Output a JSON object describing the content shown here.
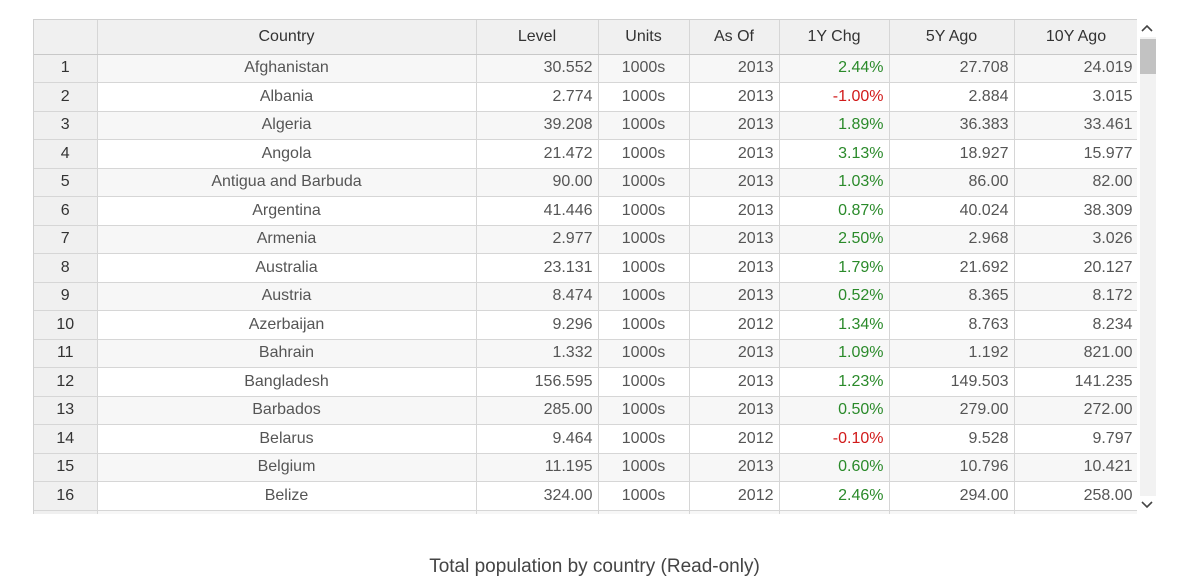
{
  "grid": {
    "headers": [
      "",
      "Country",
      "Level",
      "Units",
      "As Of",
      "1Y Chg",
      "5Y Ago",
      "10Y Ago"
    ],
    "rows": [
      {
        "n": "1",
        "country": "Afghanistan",
        "level": "30.552",
        "units": "1000s",
        "asof": "2013",
        "chg": "2.44%",
        "y5": "27.708",
        "y10": "24.019",
        "dir": "pos"
      },
      {
        "n": "2",
        "country": "Albania",
        "level": "2.774",
        "units": "1000s",
        "asof": "2013",
        "chg": "-1.00%",
        "y5": "2.884",
        "y10": "3.015",
        "dir": "neg"
      },
      {
        "n": "3",
        "country": "Algeria",
        "level": "39.208",
        "units": "1000s",
        "asof": "2013",
        "chg": "1.89%",
        "y5": "36.383",
        "y10": "33.461",
        "dir": "pos"
      },
      {
        "n": "4",
        "country": "Angola",
        "level": "21.472",
        "units": "1000s",
        "asof": "2013",
        "chg": "3.13%",
        "y5": "18.927",
        "y10": "15.977",
        "dir": "pos"
      },
      {
        "n": "5",
        "country": "Antigua and Barbuda",
        "level": "90.00",
        "units": "1000s",
        "asof": "2013",
        "chg": "1.03%",
        "y5": "86.00",
        "y10": "82.00",
        "dir": "pos"
      },
      {
        "n": "6",
        "country": "Argentina",
        "level": "41.446",
        "units": "1000s",
        "asof": "2013",
        "chg": "0.87%",
        "y5": "40.024",
        "y10": "38.309",
        "dir": "pos"
      },
      {
        "n": "7",
        "country": "Armenia",
        "level": "2.977",
        "units": "1000s",
        "asof": "2013",
        "chg": "2.50%",
        "y5": "2.968",
        "y10": "3.026",
        "dir": "pos"
      },
      {
        "n": "8",
        "country": "Australia",
        "level": "23.131",
        "units": "1000s",
        "asof": "2013",
        "chg": "1.79%",
        "y5": "21.692",
        "y10": "20.127",
        "dir": "pos"
      },
      {
        "n": "9",
        "country": "Austria",
        "level": "8.474",
        "units": "1000s",
        "asof": "2013",
        "chg": "0.52%",
        "y5": "8.365",
        "y10": "8.172",
        "dir": "pos"
      },
      {
        "n": "10",
        "country": "Azerbaijan",
        "level": "9.296",
        "units": "1000s",
        "asof": "2012",
        "chg": "1.34%",
        "y5": "8.763",
        "y10": "8.234",
        "dir": "pos"
      },
      {
        "n": "11",
        "country": "Bahrain",
        "level": "1.332",
        "units": "1000s",
        "asof": "2013",
        "chg": "1.09%",
        "y5": "1.192",
        "y10": "821.00",
        "dir": "pos"
      },
      {
        "n": "12",
        "country": "Bangladesh",
        "level": "156.595",
        "units": "1000s",
        "asof": "2013",
        "chg": "1.23%",
        "y5": "149.503",
        "y10": "141.235",
        "dir": "pos"
      },
      {
        "n": "13",
        "country": "Barbados",
        "level": "285.00",
        "units": "1000s",
        "asof": "2013",
        "chg": "0.50%",
        "y5": "279.00",
        "y10": "272.00",
        "dir": "pos"
      },
      {
        "n": "14",
        "country": "Belarus",
        "level": "9.464",
        "units": "1000s",
        "asof": "2012",
        "chg": "-0.10%",
        "y5": "9.528",
        "y10": "9.797",
        "dir": "neg"
      },
      {
        "n": "15",
        "country": "Belgium",
        "level": "11.195",
        "units": "1000s",
        "asof": "2013",
        "chg": "0.60%",
        "y5": "10.796",
        "y10": "10.421",
        "dir": "pos"
      },
      {
        "n": "16",
        "country": "Belize",
        "level": "324.00",
        "units": "1000s",
        "asof": "2012",
        "chg": "2.46%",
        "y5": "294.00",
        "y10": "258.00",
        "dir": "pos"
      },
      {
        "n": "",
        "country": "",
        "level": "",
        "units": "",
        "asof": "",
        "chg": "",
        "y5": "",
        "y10": "",
        "dir": ""
      }
    ]
  },
  "colors": {
    "positive": "#2a8a2a",
    "negative": "#d11a1a",
    "header_bg": "#f0f0f0"
  },
  "scrollbar": {
    "up_icon": "chevron-up-icon",
    "down_icon": "chevron-down-icon"
  },
  "caption": "Total population by country (Read-only)"
}
